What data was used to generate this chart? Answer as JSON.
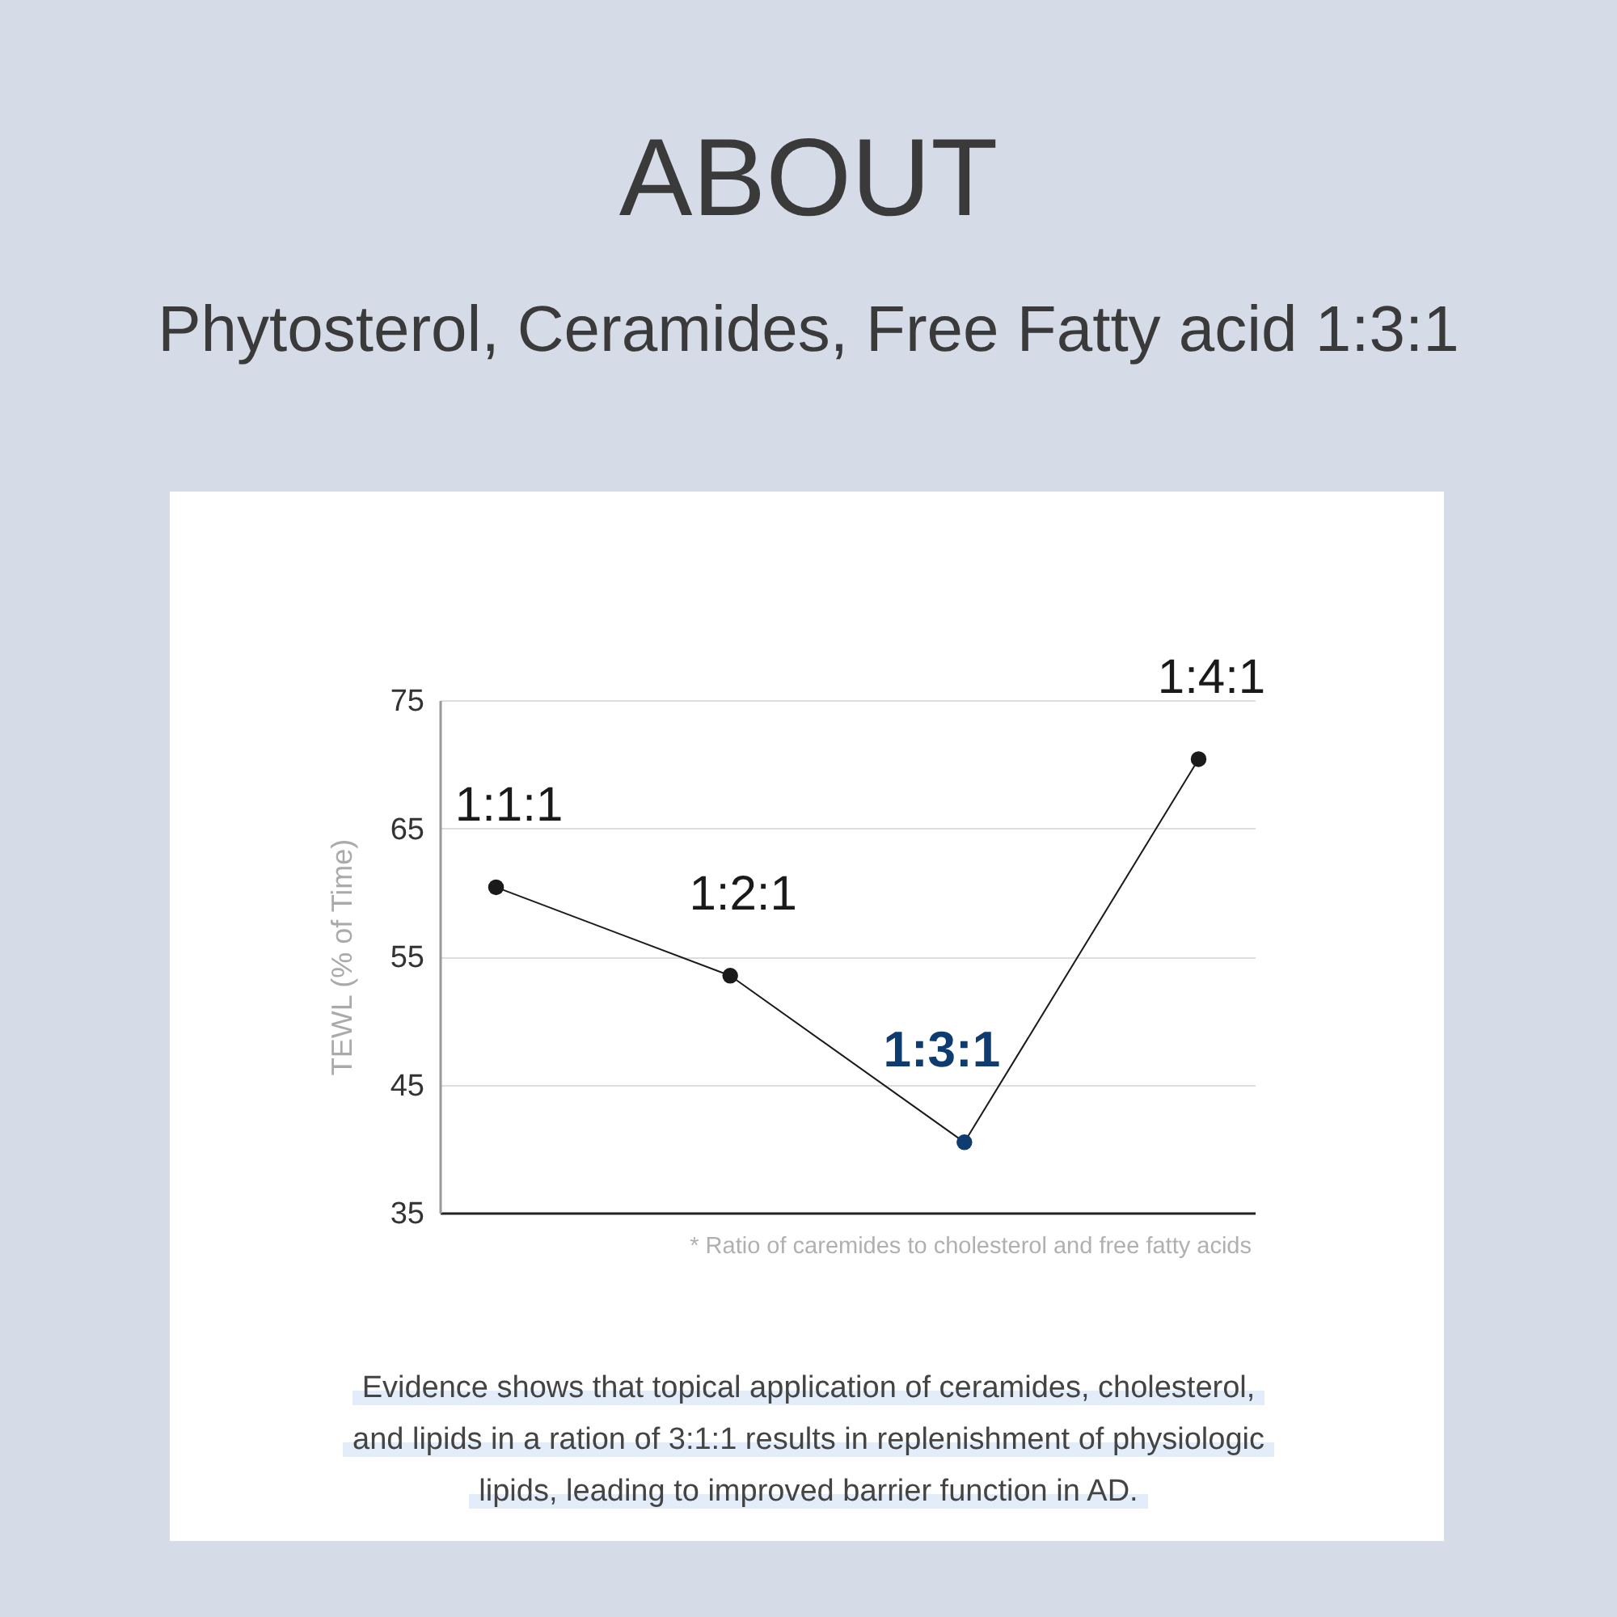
{
  "chart_data": {
    "type": "line",
    "title": "ABOUT",
    "subtitle": "Phytosterol, Ceramides, Free Fatty acid 1:3:1",
    "ylabel": "TEWL (% of Time)",
    "categories": [
      "1:1:1",
      "1:2:1",
      "1:3:1",
      "1:4:1"
    ],
    "series": [
      {
        "color": "#1a1a1a",
        "colors": [
          "#1a1a1a",
          "#1a1a1a",
          "#0e3c70",
          "#1a1a1a"
        ],
        "values": [
          60.4,
          53.5,
          40.5,
          70.4
        ]
      }
    ],
    "ylim": [
      35,
      75
    ],
    "yticks": [
      35,
      45,
      55,
      65,
      75
    ],
    "grid": "y",
    "marker": "circle",
    "line_style": "solid",
    "tick_labels": "y",
    "annotations": [
      "* Ratio of caremides to cholesterol and free fatty acids",
      "Evidence shows that topical application of ceramides, cholesterol, and lipids in a ration of 3:1:1 results in replenishment of physiologic lipids, leading to improved barrier function in AD."
    ]
  }
}
